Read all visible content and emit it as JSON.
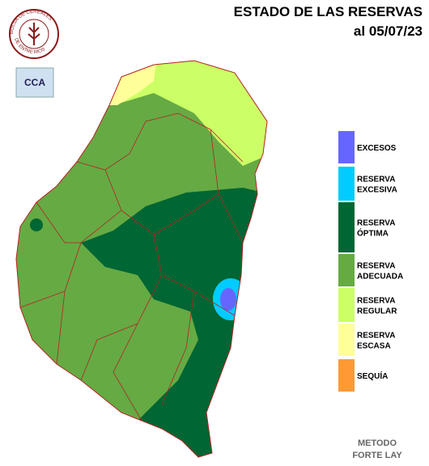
{
  "logo": {
    "top": "BOLSA DE CEREALES",
    "bottom": "DE ENTRE RIOS"
  },
  "badge": "CCA",
  "title": [
    "ESTADO DE LAS RESERVAS",
    "al 05/07/23"
  ],
  "legend": [
    {
      "lines": [
        "EXCESOS"
      ],
      "color": "#6666ff"
    },
    {
      "lines": [
        "RESERVA",
        "EXCESIVA"
      ],
      "color": "#00ccff"
    },
    {
      "lines": [
        "RESERVA",
        "ÓPTIMA"
      ],
      "color": "#006633"
    },
    {
      "lines": [
        "RESERVA",
        "ADECUADA"
      ],
      "color": "#66aa44"
    },
    {
      "lines": [
        "RESERVA",
        "REGULAR"
      ],
      "color": "#ccff66"
    },
    {
      "lines": [
        "RESERVA",
        "ESCASA"
      ],
      "color": "#ffff99"
    },
    {
      "lines": [
        "SEQUÍA"
      ],
      "color": "#ff9933"
    }
  ],
  "footer": [
    "METODO",
    "FORTE LAY"
  ]
}
